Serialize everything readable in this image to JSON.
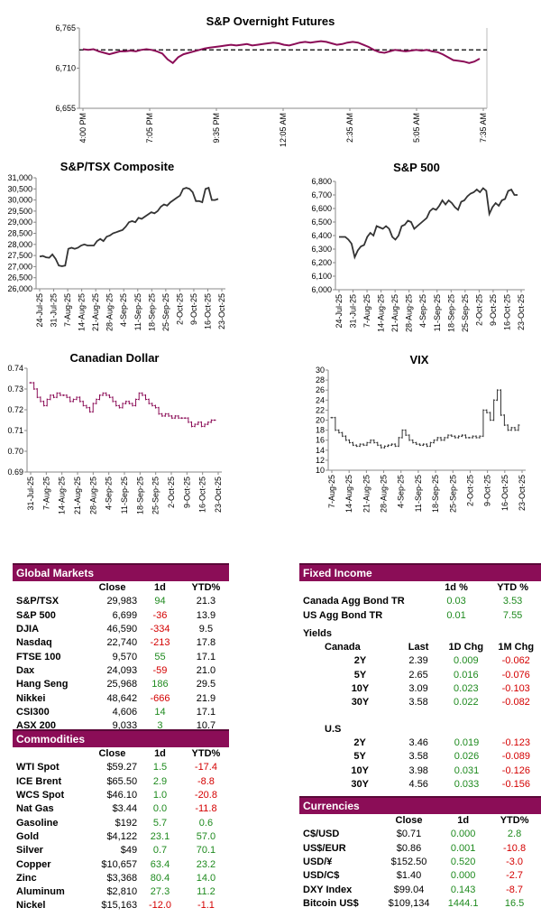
{
  "chart_data": [
    {
      "id": "spx_futures",
      "type": "line",
      "title": "S&P Overnight Futures",
      "ylim": [
        6655,
        6765
      ],
      "yticks": [
        6765,
        6710,
        6655
      ],
      "ytick_labels": [
        "6,765",
        "6,710",
        "6,655"
      ],
      "xtick_labels": [
        "4:00 PM",
        "7:05 PM",
        "9:35 PM",
        "12:05 AM",
        "2:35 AM",
        "5:05 AM",
        "7:35 AM"
      ],
      "reference_line": 6735,
      "color": "#8b0d57",
      "values": [
        6736,
        6735,
        6736,
        6733,
        6731,
        6729,
        6731,
        6733,
        6733,
        6734,
        6733,
        6735,
        6736,
        6735,
        6733,
        6730,
        6722,
        6717,
        6725,
        6729,
        6731,
        6733,
        6735,
        6737,
        6738,
        6739,
        6740,
        6741,
        6742,
        6741,
        6742,
        6743,
        6741,
        6742,
        6743,
        6744,
        6745,
        6744,
        6742,
        6741,
        6743,
        6745,
        6746,
        6745,
        6746,
        6747,
        6746,
        6744,
        6742,
        6743,
        6745,
        6746,
        6745,
        6742,
        6739,
        6735,
        6732,
        6731,
        6733,
        6735,
        6734,
        6733,
        6734,
        6735,
        6734,
        6735,
        6733,
        6732,
        6729,
        6725,
        6721,
        6720,
        6719,
        6717,
        6719,
        6723
      ]
    },
    {
      "id": "tsx",
      "type": "line",
      "title": "S&P/TSX Composite",
      "ylim": [
        26000,
        31000
      ],
      "yticks": [
        31000,
        30500,
        30000,
        29500,
        29000,
        28500,
        28000,
        27500,
        27000,
        26500,
        26000
      ],
      "ytick_labels": [
        "31,000",
        "30,500",
        "30,000",
        "29,500",
        "29,000",
        "28,500",
        "28,000",
        "27,500",
        "27,000",
        "26,500",
        "26,000"
      ],
      "xtick_labels": [
        "24-Jul-25",
        "31-Jul-25",
        "7-Aug-25",
        "14-Aug-25",
        "21-Aug-25",
        "28-Aug-25",
        "4-Sep-25",
        "11-Sep-25",
        "18-Sep-25",
        "25-Sep-25",
        "2-Oct-25",
        "9-Oct-25",
        "16-Oct-25",
        "23-Oct-25"
      ],
      "color": "#333333",
      "values": [
        27450,
        27480,
        27420,
        27400,
        27550,
        27350,
        27050,
        27020,
        27050,
        27800,
        27850,
        27800,
        27850,
        27950,
        28000,
        27950,
        27950,
        27950,
        28150,
        28250,
        28150,
        28350,
        28400,
        28500,
        28550,
        28600,
        28650,
        28800,
        29000,
        29050,
        29000,
        29200,
        29150,
        29250,
        29350,
        29450,
        29400,
        29500,
        29700,
        29800,
        29750,
        29900,
        30000,
        30100,
        30200,
        30500,
        30550,
        30500,
        30350,
        29950,
        29950,
        29900,
        30500,
        30550,
        30000,
        30000,
        30050
      ]
    },
    {
      "id": "spx",
      "type": "line",
      "title": "S&P 500",
      "ylim": [
        6000,
        6800
      ],
      "yticks": [
        6800,
        6700,
        6600,
        6500,
        6400,
        6300,
        6200,
        6100,
        6000
      ],
      "ytick_labels": [
        "6,800",
        "6,700",
        "6,600",
        "6,500",
        "6,400",
        "6,300",
        "6,200",
        "6,100",
        "6,000"
      ],
      "xtick_labels": [
        "24-Jul-25",
        "31-Jul-25",
        "7-Aug-25",
        "14-Aug-25",
        "21-Aug-25",
        "28-Aug-25",
        "4-Sep-25",
        "11-Sep-25",
        "18-Sep-25",
        "25-Sep-25",
        "2-Oct-25",
        "9-Oct-25",
        "16-Oct-25",
        "23-Oct-25"
      ],
      "color": "#333333",
      "values": [
        6390,
        6390,
        6390,
        6370,
        6340,
        6240,
        6290,
        6320,
        6330,
        6390,
        6420,
        6400,
        6470,
        6460,
        6450,
        6470,
        6450,
        6390,
        6370,
        6400,
        6470,
        6480,
        6510,
        6500,
        6450,
        6470,
        6490,
        6510,
        6530,
        6580,
        6600,
        6590,
        6620,
        6660,
        6630,
        6660,
        6640,
        6610,
        6590,
        6650,
        6660,
        6690,
        6710,
        6720,
        6740,
        6720,
        6750,
        6730,
        6560,
        6610,
        6640,
        6620,
        6660,
        6670,
        6730,
        6740,
        6700,
        6700
      ]
    },
    {
      "id": "cad",
      "type": "candlestick",
      "title": "Canadian Dollar",
      "ylim": [
        0.69,
        0.74
      ],
      "yticks": [
        0.74,
        0.73,
        0.72,
        0.71,
        0.7,
        0.69
      ],
      "ytick_labels": [
        "0.74",
        "0.73",
        "0.72",
        "0.71",
        "0.70",
        "0.69"
      ],
      "xtick_labels": [
        "31-Jul-25",
        "7-Aug-25",
        "14-Aug-25",
        "21-Aug-25",
        "28-Aug-25",
        "4-Sep-25",
        "11-Sep-25",
        "18-Sep-25",
        "25-Sep-25",
        "2-Oct-25",
        "9-Oct-25",
        "16-Oct-25",
        "23-Oct-25"
      ],
      "color": "#8b0d57",
      "values": [
        0.733,
        0.73,
        0.726,
        0.724,
        0.722,
        0.725,
        0.727,
        0.726,
        0.728,
        0.727,
        0.727,
        0.726,
        0.724,
        0.725,
        0.726,
        0.724,
        0.722,
        0.721,
        0.719,
        0.723,
        0.725,
        0.727,
        0.728,
        0.727,
        0.726,
        0.724,
        0.722,
        0.721,
        0.723,
        0.724,
        0.723,
        0.722,
        0.725,
        0.728,
        0.727,
        0.725,
        0.723,
        0.722,
        0.721,
        0.718,
        0.717,
        0.718,
        0.717,
        0.716,
        0.717,
        0.716,
        0.716,
        0.716,
        0.714,
        0.712,
        0.713,
        0.714,
        0.712,
        0.713,
        0.714,
        0.715,
        0.715
      ]
    },
    {
      "id": "vix",
      "type": "candlestick",
      "title": "VIX",
      "ylim": [
        10,
        30
      ],
      "yticks": [
        30,
        28,
        26,
        24,
        22,
        20,
        18,
        16,
        14,
        12,
        10
      ],
      "ytick_labels": [
        "30",
        "28",
        "26",
        "24",
        "22",
        "20",
        "18",
        "16",
        "14",
        "12",
        "10"
      ],
      "xtick_labels": [
        "7-Aug-25",
        "14-Aug-25",
        "21-Aug-25",
        "28-Aug-25",
        "4-Sep-25",
        "11-Sep-25",
        "18-Sep-25",
        "25-Sep-25",
        "2-Oct-25",
        "9-Oct-25",
        "16-Oct-25",
        "23-Oct-25"
      ],
      "color": "#333333",
      "values": [
        20.5,
        18.0,
        17.5,
        16.8,
        16.0,
        15.5,
        15.0,
        14.8,
        15.2,
        15.0,
        15.5,
        16.0,
        15.5,
        15.0,
        14.5,
        14.8,
        15.0,
        15.2,
        14.8,
        16.5,
        18.0,
        17.0,
        16.0,
        15.5,
        15.2,
        15.0,
        15.2,
        14.8,
        15.5,
        16.0,
        16.5,
        16.0,
        16.5,
        17.0,
        16.8,
        16.5,
        16.8,
        17.0,
        16.5,
        16.5,
        16.8,
        16.5,
        16.8,
        22.0,
        21.5,
        20.0,
        24.0,
        26.0,
        21.0,
        19.0,
        18.0,
        18.5,
        18.0,
        19.0
      ]
    }
  ],
  "tables": {
    "global_markets": {
      "title": "Global Markets",
      "headers": [
        "",
        "Close",
        "1d",
        "YTD%"
      ],
      "rows": [
        [
          "S&P/TSX",
          "29,983",
          "94",
          "21.3"
        ],
        [
          "S&P 500",
          "6,699",
          "-36",
          "13.9"
        ],
        [
          "DJIA",
          "46,590",
          "-334",
          "9.5"
        ],
        [
          "Nasdaq",
          "22,740",
          "-213",
          "17.8"
        ],
        [
          "FTSE 100",
          "9,570",
          "55",
          "17.1"
        ],
        [
          "Dax",
          "24,093",
          "-59",
          "21.0"
        ],
        [
          "Hang Seng",
          "25,968",
          "186",
          "29.5"
        ],
        [
          "Nikkei",
          "48,642",
          "-666",
          "21.9"
        ],
        [
          "CSI300",
          "4,606",
          "14",
          "17.1"
        ],
        [
          "ASX 200",
          "9,033",
          "3",
          "10.7"
        ]
      ]
    },
    "commodities": {
      "title": "Commodities",
      "headers": [
        "",
        "Close",
        "1d",
        "YTD%"
      ],
      "rows": [
        [
          "WTI Spot",
          "$59.27",
          "1.5",
          "-17.4"
        ],
        [
          "ICE Brent",
          "$65.50",
          "2.9",
          "-8.8"
        ],
        [
          "WCS Spot",
          "$46.10",
          "1.0",
          "-20.8"
        ],
        [
          "Nat Gas",
          "$3.44",
          "0.0",
          "-11.8"
        ],
        [
          "Gasoline",
          "$192",
          "5.7",
          "0.6"
        ],
        [
          "Gold",
          "$4,122",
          "23.1",
          "57.0"
        ],
        [
          "Silver",
          "$49",
          "0.7",
          "70.1"
        ],
        [
          "Copper",
          "$10,657",
          "63.4",
          "23.2"
        ],
        [
          "Zinc",
          "$3,368",
          "80.4",
          "14.0"
        ],
        [
          "Aluminum",
          "$2,810",
          "27.3",
          "11.2"
        ],
        [
          "Nickel",
          "$15,163",
          "-12.0",
          "-1.1"
        ]
      ]
    },
    "fixed_income": {
      "title": "Fixed Income",
      "headers": [
        "",
        "1d %",
        "YTD %"
      ],
      "rows": [
        [
          "Canada Agg Bond TR",
          "0.03",
          "3.53"
        ],
        [
          "US Agg Bond TR",
          "0.01",
          "7.55"
        ]
      ]
    },
    "yields": {
      "title": "Yields",
      "canada_label": "Canada",
      "headers": [
        "Last",
        "1D Chg",
        "1M Chg"
      ],
      "canada_rows": [
        [
          "2Y",
          "2.39",
          "0.009",
          "-0.062"
        ],
        [
          "5Y",
          "2.65",
          "0.016",
          "-0.076"
        ],
        [
          "10Y",
          "3.09",
          "0.023",
          "-0.103"
        ],
        [
          "30Y",
          "3.58",
          "0.022",
          "-0.082"
        ]
      ],
      "us_label": "U.S",
      "us_rows": [
        [
          "2Y",
          "3.46",
          "0.019",
          "-0.123"
        ],
        [
          "5Y",
          "3.58",
          "0.026",
          "-0.089"
        ],
        [
          "10Y",
          "3.98",
          "0.031",
          "-0.126"
        ],
        [
          "30Y",
          "4.56",
          "0.033",
          "-0.156"
        ]
      ]
    },
    "currencies": {
      "title": "Currencies",
      "headers": [
        "",
        "Close",
        "1d",
        "YTD%"
      ],
      "rows": [
        [
          "C$/USD",
          "$0.71",
          "0.000",
          "2.8"
        ],
        [
          "US$/EUR",
          "$0.86",
          "0.001",
          "-10.8"
        ],
        [
          "USD/¥",
          "$152.50",
          "0.520",
          "-3.0"
        ],
        [
          "USD/C$",
          "$1.40",
          "0.000",
          "-2.7"
        ],
        [
          "DXY Index",
          "$99.04",
          "0.143",
          "-8.7"
        ],
        [
          "Bitcoin US$",
          "$109,134",
          "1444.1",
          "16.5"
        ]
      ]
    }
  },
  "colors": {
    "accent": "#8b0d57",
    "positive": "#1e8a1e",
    "negative": "#d40000"
  }
}
